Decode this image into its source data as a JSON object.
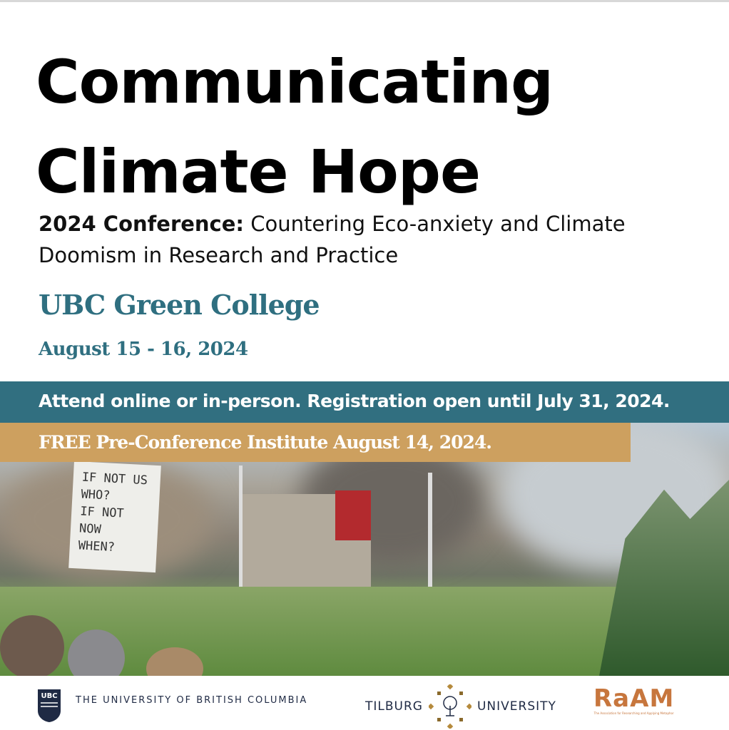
{
  "title": {
    "line1": "Communicating",
    "line2": "Climate Hope"
  },
  "subtitle": {
    "bold": "2024 Conference:",
    "rest": " Countering Eco-anxiety and Climate Doomism in Research and Practice"
  },
  "venue": "UBC Green College",
  "dates": "August 15 - 16, 2024",
  "band_registration": "Attend online or in-person. Registration open until July 31, 2024.",
  "band_preconference": "FREE Pre-Conference Institute August 14, 2024.",
  "photo": {
    "sign_lines": [
      "IF NOT US",
      "WHO?",
      "IF NOT NOW",
      "WHEN?"
    ]
  },
  "footer": {
    "ubc": {
      "logo": "UBC",
      "name": "THE UNIVERSITY OF BRITISH COLUMBIA"
    },
    "tilburg": {
      "left": "TILBURG",
      "right": "UNIVERSITY"
    },
    "raam": {
      "logo": "RaAM",
      "tagline": "The Association for Researching and Applying Metaphor"
    }
  },
  "colors": {
    "teal": "#316f80",
    "gold": "#cda05f",
    "raam": "#c7763d",
    "navy": "#1f2a44"
  }
}
